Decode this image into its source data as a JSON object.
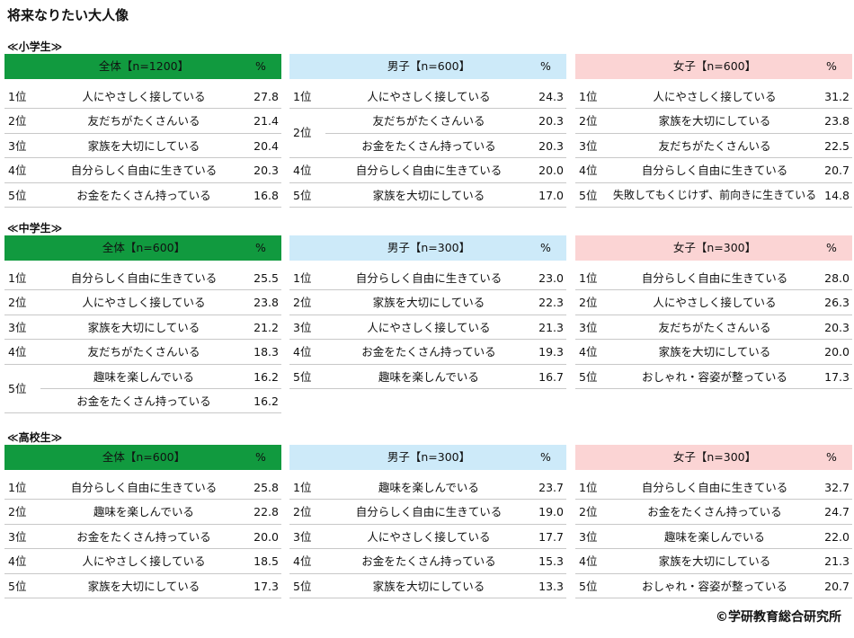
{
  "title": "将来なりたい大人像",
  "footer": "©学研教育総合研究所",
  "sections": [
    {
      "label": "≪小学生≫",
      "tables": [
        {
          "header": "全体【n=1200】",
          "unit": "%",
          "groups": [
            {
              "rank": "1位",
              "items": [
                {
                  "label": "人にやさしく接している",
                  "value": "27.8"
                }
              ]
            },
            {
              "rank": "2位",
              "items": [
                {
                  "label": "友だちがたくさんいる",
                  "value": "21.4"
                }
              ]
            },
            {
              "rank": "3位",
              "items": [
                {
                  "label": "家族を大切にしている",
                  "value": "20.4"
                }
              ]
            },
            {
              "rank": "4位",
              "items": [
                {
                  "label": "自分らしく自由に生きている",
                  "value": "20.3"
                }
              ]
            },
            {
              "rank": "5位",
              "items": [
                {
                  "label": "お金をたくさん持っている",
                  "value": "16.8"
                }
              ]
            }
          ]
        },
        {
          "header": "男子【n=600】",
          "unit": "%",
          "groups": [
            {
              "rank": "1位",
              "items": [
                {
                  "label": "人にやさしく接している",
                  "value": "24.3"
                }
              ]
            },
            {
              "rank": "2位",
              "items": [
                {
                  "label": "友だちがたくさんいる",
                  "value": "20.3"
                },
                {
                  "label": "お金をたくさん持っている",
                  "value": "20.3"
                }
              ]
            },
            {
              "rank": "4位",
              "items": [
                {
                  "label": "自分らしく自由に生きている",
                  "value": "20.0"
                }
              ]
            },
            {
              "rank": "5位",
              "items": [
                {
                  "label": "家族を大切にしている",
                  "value": "17.0"
                }
              ]
            }
          ]
        },
        {
          "header": "女子【n=600】",
          "unit": "%",
          "groups": [
            {
              "rank": "1位",
              "items": [
                {
                  "label": "人にやさしく接している",
                  "value": "31.2"
                }
              ]
            },
            {
              "rank": "2位",
              "items": [
                {
                  "label": "家族を大切にしている",
                  "value": "23.8"
                }
              ]
            },
            {
              "rank": "3位",
              "items": [
                {
                  "label": "友だちがたくさんいる",
                  "value": "22.5"
                }
              ]
            },
            {
              "rank": "4位",
              "items": [
                {
                  "label": "自分らしく自由に生きている",
                  "value": "20.7"
                }
              ]
            },
            {
              "rank": "5位",
              "items": [
                {
                  "label": "失敗してもくじけず、前向きに生きている",
                  "value": "14.8"
                }
              ]
            }
          ]
        }
      ]
    },
    {
      "label": "≪中学生≫",
      "tables": [
        {
          "header": "全体【n=600】",
          "unit": "%",
          "groups": [
            {
              "rank": "1位",
              "items": [
                {
                  "label": "自分らしく自由に生きている",
                  "value": "25.5"
                }
              ]
            },
            {
              "rank": "2位",
              "items": [
                {
                  "label": "人にやさしく接している",
                  "value": "23.8"
                }
              ]
            },
            {
              "rank": "3位",
              "items": [
                {
                  "label": "家族を大切にしている",
                  "value": "21.2"
                }
              ]
            },
            {
              "rank": "4位",
              "items": [
                {
                  "label": "友だちがたくさんいる",
                  "value": "18.3"
                }
              ]
            },
            {
              "rank": "5位",
              "items": [
                {
                  "label": "趣味を楽しんでいる",
                  "value": "16.2"
                },
                {
                  "label": "お金をたくさん持っている",
                  "value": "16.2"
                }
              ]
            }
          ]
        },
        {
          "header": "男子【n=300】",
          "unit": "%",
          "groups": [
            {
              "rank": "1位",
              "items": [
                {
                  "label": "自分らしく自由に生きている",
                  "value": "23.0"
                }
              ]
            },
            {
              "rank": "2位",
              "items": [
                {
                  "label": "家族を大切にしている",
                  "value": "22.3"
                }
              ]
            },
            {
              "rank": "3位",
              "items": [
                {
                  "label": "人にやさしく接している",
                  "value": "21.3"
                }
              ]
            },
            {
              "rank": "4位",
              "items": [
                {
                  "label": "お金をたくさん持っている",
                  "value": "19.3"
                }
              ]
            },
            {
              "rank": "5位",
              "items": [
                {
                  "label": "趣味を楽しんでいる",
                  "value": "16.7"
                }
              ]
            }
          ]
        },
        {
          "header": "女子【n=300】",
          "unit": "%",
          "groups": [
            {
              "rank": "1位",
              "items": [
                {
                  "label": "自分らしく自由に生きている",
                  "value": "28.0"
                }
              ]
            },
            {
              "rank": "2位",
              "items": [
                {
                  "label": "人にやさしく接している",
                  "value": "26.3"
                }
              ]
            },
            {
              "rank": "3位",
              "items": [
                {
                  "label": "友だちがたくさんいる",
                  "value": "20.3"
                }
              ]
            },
            {
              "rank": "4位",
              "items": [
                {
                  "label": "家族を大切にしている",
                  "value": "20.0"
                }
              ]
            },
            {
              "rank": "5位",
              "items": [
                {
                  "label": "おしゃれ・容姿が整っている",
                  "value": "17.3"
                }
              ]
            }
          ]
        }
      ]
    },
    {
      "label": "≪高校生≫",
      "tables": [
        {
          "header": "全体【n=600】",
          "unit": "%",
          "groups": [
            {
              "rank": "1位",
              "items": [
                {
                  "label": "自分らしく自由に生きている",
                  "value": "25.8"
                }
              ]
            },
            {
              "rank": "2位",
              "items": [
                {
                  "label": "趣味を楽しんでいる",
                  "value": "22.8"
                }
              ]
            },
            {
              "rank": "3位",
              "items": [
                {
                  "label": "お金をたくさん持っている",
                  "value": "20.0"
                }
              ]
            },
            {
              "rank": "4位",
              "items": [
                {
                  "label": "人にやさしく接している",
                  "value": "18.5"
                }
              ]
            },
            {
              "rank": "5位",
              "items": [
                {
                  "label": "家族を大切にしている",
                  "value": "17.3"
                }
              ]
            }
          ]
        },
        {
          "header": "男子【n=300】",
          "unit": "%",
          "groups": [
            {
              "rank": "1位",
              "items": [
                {
                  "label": "趣味を楽しんでいる",
                  "value": "23.7"
                }
              ]
            },
            {
              "rank": "2位",
              "items": [
                {
                  "label": "自分らしく自由に生きている",
                  "value": "19.0"
                }
              ]
            },
            {
              "rank": "3位",
              "items": [
                {
                  "label": "人にやさしく接している",
                  "value": "17.7"
                }
              ]
            },
            {
              "rank": "4位",
              "items": [
                {
                  "label": "お金をたくさん持っている",
                  "value": "15.3"
                }
              ]
            },
            {
              "rank": "5位",
              "items": [
                {
                  "label": "家族を大切にしている",
                  "value": "13.3"
                }
              ]
            }
          ]
        },
        {
          "header": "女子【n=300】",
          "unit": "%",
          "groups": [
            {
              "rank": "1位",
              "items": [
                {
                  "label": "自分らしく自由に生きている",
                  "value": "32.7"
                }
              ]
            },
            {
              "rank": "2位",
              "items": [
                {
                  "label": "お金をたくさん持っている",
                  "value": "24.7"
                }
              ]
            },
            {
              "rank": "3位",
              "items": [
                {
                  "label": "趣味を楽しんでいる",
                  "value": "22.0"
                }
              ]
            },
            {
              "rank": "4位",
              "items": [
                {
                  "label": "家族を大切にしている",
                  "value": "21.3"
                }
              ]
            },
            {
              "rank": "5位",
              "items": [
                {
                  "label": "おしゃれ・容姿が整っている",
                  "value": "20.7"
                }
              ]
            }
          ]
        }
      ]
    }
  ]
}
